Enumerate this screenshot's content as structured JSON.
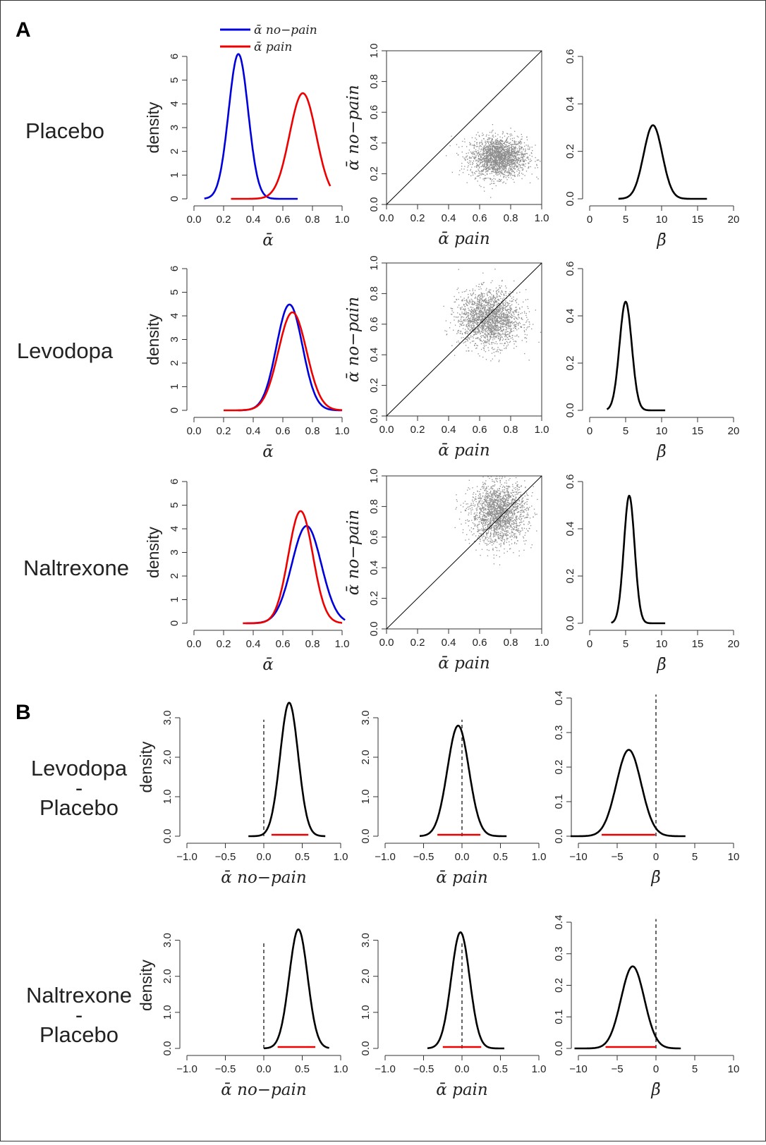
{
  "panel_labels": {
    "A": "A",
    "B": "B"
  },
  "row_labels": {
    "placebo": "Placebo",
    "levodopa": "Levodopa",
    "naltrexone": "Naltrexone",
    "lev_minus_plac": [
      "Levodopa",
      "-",
      "Placebo"
    ],
    "nal_minus_plac": [
      "Naltrexone",
      "-",
      "Placebo"
    ]
  },
  "legend": {
    "no_pain": "ᾱ no−pain",
    "pain": "ᾱ pain",
    "no_pain_color": "#0000dd",
    "pain_color": "#ee0000"
  },
  "colors": {
    "alpha_no_pain": "#0000dd",
    "alpha_pain": "#ee0000",
    "posterior": "#000000",
    "scatter": "#8c8c8c",
    "hdi_bar": "#ee0000"
  },
  "axis_titles": {
    "density": "density",
    "alpha": "ᾱ",
    "alpha_pain": "ᾱ pain",
    "alpha_no_pain": "ᾱ no−pain",
    "beta": "β̄"
  },
  "chart_data": [
    {
      "id": "A1-alpha",
      "type": "line",
      "row": "Placebo",
      "xlabel": "ᾱ",
      "ylabel": "density",
      "xlim": [
        0,
        1
      ],
      "ylim": [
        0,
        6
      ],
      "xticks": [
        "0.0",
        "0.2",
        "0.4",
        "0.6",
        "0.8",
        "1.0"
      ],
      "yticks": [
        "0",
        "1",
        "2",
        "3",
        "4",
        "5",
        "6"
      ],
      "series": [
        {
          "name": "ᾱ no−pain",
          "color": "#0000dd",
          "kind": "gauss",
          "mu": 0.3,
          "sd": 0.066,
          "peak": 6.1,
          "range": [
            0.07,
            0.7
          ]
        },
        {
          "name": "ᾱ pain",
          "color": "#ee0000",
          "kind": "gauss",
          "mu": 0.735,
          "sd": 0.09,
          "peak": 4.45,
          "range": [
            0.25,
            0.92
          ]
        }
      ]
    },
    {
      "id": "A1-scatter",
      "type": "scatter",
      "row": "Placebo",
      "xlabel": "ᾱ pain",
      "ylabel": "ᾱ no−pain",
      "xlim": [
        0,
        1
      ],
      "ylim": [
        0,
        1
      ],
      "xticks": [
        "0.0",
        "0.2",
        "0.4",
        "0.6",
        "0.8",
        "1.0"
      ],
      "yticks": [
        "0.0",
        "0.2",
        "0.4",
        "0.6",
        "0.8",
        "1.0"
      ],
      "cloud": {
        "mean_x": 0.72,
        "mean_y": 0.31,
        "sd_x": 0.09,
        "sd_y": 0.065,
        "n": 2000
      },
      "identity_line": true
    },
    {
      "id": "A1-beta",
      "type": "line",
      "row": "Placebo",
      "xlabel": "β̄",
      "ylabel": "",
      "xlim": [
        0,
        20
      ],
      "ylim": [
        0,
        0.6
      ],
      "xticks": [
        "0",
        "5",
        "10",
        "15",
        "20"
      ],
      "yticks": [
        "0.0",
        "0.2",
        "0.4",
        "0.6"
      ],
      "series": [
        {
          "color": "#000000",
          "kind": "gauss",
          "mu": 8.8,
          "sd": 1.3,
          "peak": 0.31,
          "range": [
            4.0,
            16.3
          ]
        }
      ]
    },
    {
      "id": "A2-alpha",
      "type": "line",
      "row": "Levodopa",
      "xlabel": "ᾱ",
      "ylabel": "density",
      "xlim": [
        0,
        1
      ],
      "ylim": [
        0,
        6
      ],
      "xticks": [
        "0.0",
        "0.2",
        "0.4",
        "0.6",
        "0.8",
        "1.0"
      ],
      "yticks": [
        "0",
        "1",
        "2",
        "3",
        "4",
        "5",
        "6"
      ],
      "series": [
        {
          "name": "ᾱ no−pain",
          "color": "#0000dd",
          "kind": "gauss",
          "mu": 0.645,
          "sd": 0.088,
          "peak": 4.48,
          "range": [
            0.3,
            1.0
          ]
        },
        {
          "name": "ᾱ pain",
          "color": "#ee0000",
          "kind": "gauss",
          "mu": 0.665,
          "sd": 0.095,
          "peak": 4.15,
          "range": [
            0.2,
            1.0
          ]
        }
      ]
    },
    {
      "id": "A2-scatter",
      "type": "scatter",
      "row": "Levodopa",
      "xlabel": "ᾱ pain",
      "ylabel": "ᾱ no−pain",
      "xlim": [
        0,
        1
      ],
      "ylim": [
        0,
        1
      ],
      "xticks": [
        "0.0",
        "0.2",
        "0.4",
        "0.6",
        "0.8",
        "1.0"
      ],
      "yticks": [
        "0.0",
        "0.2",
        "0.4",
        "0.6",
        "0.8",
        "1.0"
      ],
      "cloud": {
        "mean_x": 0.66,
        "mean_y": 0.64,
        "sd_x": 0.1,
        "sd_y": 0.09,
        "n": 2000
      },
      "identity_line": true
    },
    {
      "id": "A2-beta",
      "type": "line",
      "row": "Levodopa",
      "xlabel": "β̄",
      "ylabel": "",
      "xlim": [
        0,
        20
      ],
      "ylim": [
        0,
        0.6
      ],
      "xticks": [
        "0",
        "5",
        "10",
        "15",
        "20"
      ],
      "yticks": [
        "0.0",
        "0.2",
        "0.4",
        "0.6"
      ],
      "series": [
        {
          "color": "#000000",
          "kind": "gauss",
          "mu": 5.0,
          "sd": 0.85,
          "peak": 0.46,
          "range": [
            2.4,
            10.5
          ]
        }
      ]
    },
    {
      "id": "A3-alpha",
      "type": "line",
      "row": "Naltrexone",
      "xlabel": "ᾱ",
      "ylabel": "density",
      "xlim": [
        0,
        1
      ],
      "ylim": [
        0,
        6
      ],
      "xticks": [
        "0.0",
        "0.2",
        "0.4",
        "0.6",
        "0.8",
        "1.0"
      ],
      "yticks": [
        "0",
        "1",
        "2",
        "3",
        "4",
        "5",
        "6"
      ],
      "series": [
        {
          "name": "ᾱ no−pain",
          "color": "#0000dd",
          "kind": "gauss",
          "mu": 0.76,
          "sd": 0.1,
          "peak": 4.12,
          "range": [
            0.35,
            1.02
          ]
        },
        {
          "name": "ᾱ pain",
          "color": "#ee0000",
          "kind": "gauss",
          "mu": 0.72,
          "sd": 0.083,
          "peak": 4.75,
          "range": [
            0.33,
            1.0
          ]
        }
      ]
    },
    {
      "id": "A3-scatter",
      "type": "scatter",
      "row": "Naltrexone",
      "xlabel": "ᾱ pain",
      "ylabel": "ᾱ no−pain",
      "xlim": [
        0,
        1
      ],
      "ylim": [
        0,
        1
      ],
      "xticks": [
        "0.0",
        "0.2",
        "0.4",
        "0.6",
        "0.8",
        "1.0"
      ],
      "yticks": [
        "0.0",
        "0.2",
        "0.4",
        "0.6",
        "0.8",
        "1.0"
      ],
      "cloud": {
        "mean_x": 0.72,
        "mean_y": 0.76,
        "sd_x": 0.09,
        "sd_y": 0.1,
        "n": 2000
      },
      "identity_line": true
    },
    {
      "id": "A3-beta",
      "type": "line",
      "row": "Naltrexone",
      "xlabel": "β̄",
      "ylabel": "",
      "xlim": [
        0,
        20
      ],
      "ylim": [
        0,
        0.6
      ],
      "xticks": [
        "0",
        "5",
        "10",
        "15",
        "20"
      ],
      "yticks": [
        "0.0",
        "0.2",
        "0.4",
        "0.6"
      ],
      "series": [
        {
          "color": "#000000",
          "kind": "gauss",
          "mu": 5.5,
          "sd": 0.75,
          "peak": 0.54,
          "range": [
            3.0,
            10.5
          ]
        }
      ]
    },
    {
      "id": "B1-nopain",
      "type": "line",
      "row": "Levodopa - Placebo",
      "xlabel": "ᾱ no−pain",
      "ylabel": "density",
      "xlim": [
        -1,
        1
      ],
      "ylim": [
        0,
        3.5
      ],
      "xticks": [
        "−1.0",
        "−0.5",
        "0.0",
        "0.5",
        "1.0"
      ],
      "yticks": [
        "0.0",
        "1.0",
        "2.0",
        "3.0"
      ],
      "series": [
        {
          "color": "#000000",
          "kind": "gauss",
          "mu": 0.33,
          "sd": 0.118,
          "peak": 3.38,
          "range": [
            -0.2,
            0.8
          ]
        }
      ],
      "hdi": [
        0.1,
        0.58
      ],
      "zero_line": {
        "x": 0,
        "top": 2.95
      }
    },
    {
      "id": "B1-pain",
      "type": "line",
      "row": "Levodopa - Placebo",
      "xlabel": "ᾱ pain",
      "ylabel": "",
      "xlim": [
        -1,
        1
      ],
      "ylim": [
        0,
        3.5
      ],
      "xticks": [
        "−1.0",
        "−0.5",
        "0.0",
        "0.5",
        "1.0"
      ],
      "yticks": [
        "0.0",
        "1.0",
        "2.0",
        "3.0"
      ],
      "series": [
        {
          "color": "#000000",
          "kind": "gauss",
          "mu": -0.05,
          "sd": 0.14,
          "peak": 2.8,
          "range": [
            -0.55,
            0.58
          ]
        }
      ],
      "hdi": [
        -0.32,
        0.24
      ],
      "zero_line": {
        "x": 0,
        "top": 2.95
      }
    },
    {
      "id": "B1-beta",
      "type": "line",
      "row": "Levodopa - Placebo",
      "xlabel": "β̄",
      "ylabel": "",
      "xlim": [
        -10,
        10
      ],
      "ylim": [
        0,
        0.4
      ],
      "xticks": [
        "−10",
        "−5",
        "0",
        "5",
        "10"
      ],
      "yticks": [
        "0.0",
        "0.1",
        "0.2",
        "0.3",
        "0.4"
      ],
      "series": [
        {
          "color": "#000000",
          "kind": "gauss",
          "mu": -3.5,
          "sd": 1.6,
          "peak": 0.25,
          "range": [
            -11,
            3.8
          ]
        }
      ],
      "hdi": [
        -7.0,
        -0.1
      ],
      "zero_line": {
        "x": 0,
        "top": 0.41
      }
    },
    {
      "id": "B2-nopain",
      "type": "line",
      "row": "Naltrexone - Placebo",
      "xlabel": "ᾱ no−pain",
      "ylabel": "density",
      "xlim": [
        -1,
        1
      ],
      "ylim": [
        0,
        3.5
      ],
      "xticks": [
        "−1.0",
        "−0.5",
        "0.0",
        "0.5",
        "1.0"
      ],
      "yticks": [
        "0.0",
        "1.0",
        "2.0",
        "3.0"
      ],
      "series": [
        {
          "color": "#000000",
          "kind": "gauss",
          "mu": 0.45,
          "sd": 0.12,
          "peak": 3.3,
          "range": [
            0.0,
            0.85
          ]
        }
      ],
      "hdi": [
        0.18,
        0.67
      ],
      "zero_line": {
        "x": 0,
        "top": 2.95
      }
    },
    {
      "id": "B2-pain",
      "type": "line",
      "row": "Naltrexone - Placebo",
      "xlabel": "ᾱ pain",
      "ylabel": "",
      "xlim": [
        -1,
        1
      ],
      "ylim": [
        0,
        3.5
      ],
      "xticks": [
        "−1.0",
        "−0.5",
        "0.0",
        "0.5",
        "1.0"
      ],
      "yticks": [
        "0.0",
        "1.0",
        "2.0",
        "3.0"
      ],
      "series": [
        {
          "color": "#000000",
          "kind": "gauss",
          "mu": -0.02,
          "sd": 0.12,
          "peak": 3.22,
          "range": [
            -0.45,
            0.55
          ]
        }
      ],
      "hdi": [
        -0.25,
        0.25
      ],
      "zero_line": {
        "x": 0,
        "top": 2.95
      }
    },
    {
      "id": "B2-beta",
      "type": "line",
      "row": "Naltrexone - Placebo",
      "xlabel": "β̄",
      "ylabel": "",
      "xlim": [
        -10,
        10
      ],
      "ylim": [
        0,
        0.4
      ],
      "xticks": [
        "−10",
        "−5",
        "0",
        "5",
        "10"
      ],
      "yticks": [
        "0.0",
        "0.1",
        "0.2",
        "0.3",
        "0.4"
      ],
      "series": [
        {
          "color": "#000000",
          "kind": "gauss",
          "mu": -3.0,
          "sd": 1.5,
          "peak": 0.26,
          "range": [
            -10.5,
            3.2
          ]
        }
      ],
      "hdi": [
        -6.5,
        0.0
      ],
      "zero_line": {
        "x": 0,
        "top": 0.41
      }
    }
  ]
}
